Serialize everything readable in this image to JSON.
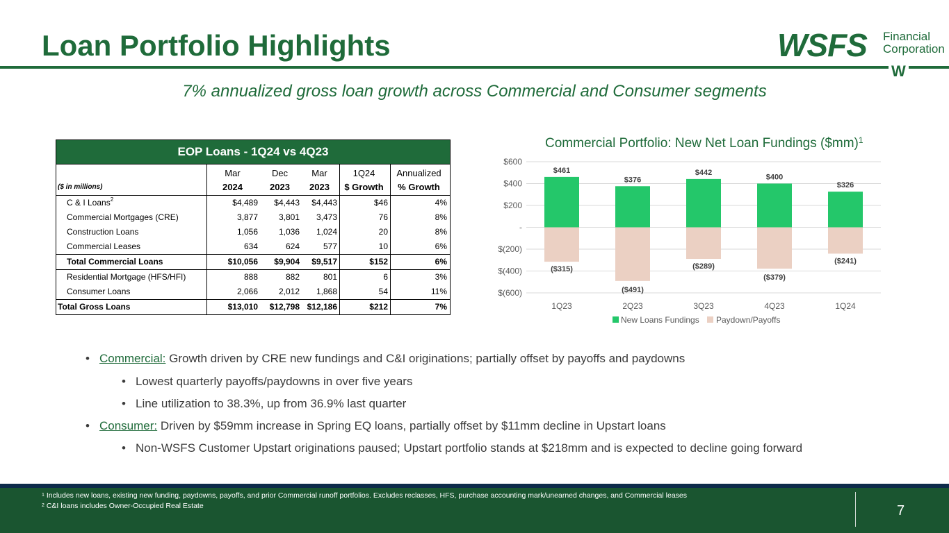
{
  "header": {
    "title": "Loan Portfolio Highlights",
    "subtitle": "7% annualized gross loan growth across Commercial and Consumer segments"
  },
  "logo": {
    "main": "WSFS",
    "sub_line1": "Financial",
    "sub_line2": "Corporation",
    "mark": "W"
  },
  "table": {
    "title": "EOP Loans - 1Q24 vs 4Q23",
    "units": "($ in millions)",
    "header_row1": [
      "Mar",
      "Dec",
      "Mar",
      "1Q24",
      "Annualized"
    ],
    "header_row2": [
      "2024",
      "2023",
      "2023",
      "$ Growth",
      "% Growth"
    ],
    "rows": [
      {
        "label": "C & I Loans",
        "sup": "2",
        "v": [
          "$4,489",
          "$4,443",
          "$4,443",
          "$46",
          "4%"
        ]
      },
      {
        "label": "Commercial Mortgages (CRE)",
        "v": [
          "3,877",
          "3,801",
          "3,473",
          "76",
          "8%"
        ]
      },
      {
        "label": "Construction Loans",
        "v": [
          "1,056",
          "1,036",
          "1,024",
          "20",
          "8%"
        ]
      },
      {
        "label": "Commercial Leases",
        "v": [
          "634",
          "624",
          "577",
          "10",
          "6%"
        ]
      },
      {
        "label": "Total Commercial Loans",
        "v": [
          "$10,056",
          "$9,904",
          "$9,517",
          "$152",
          "6%"
        ]
      },
      {
        "label": "Residential Mortgage (HFS/HFI)",
        "v": [
          "888",
          "882",
          "801",
          "6",
          "3%"
        ]
      },
      {
        "label": "Consumer Loans",
        "v": [
          "2,066",
          "2,012",
          "1,868",
          "54",
          "11%"
        ]
      },
      {
        "label": "Total Gross Loans",
        "v": [
          "$13,010",
          "$12,798",
          "$12,186",
          "$212",
          "7%"
        ]
      }
    ]
  },
  "chart_title": "Commercial Portfolio: New Net Loan Fundings ($mm)",
  "chart_title_sup": "1",
  "chart_data": {
    "type": "bar",
    "title": "Commercial Portfolio: New Net Loan Fundings ($mm)",
    "categories": [
      "1Q23",
      "2Q23",
      "3Q23",
      "4Q23",
      "1Q24"
    ],
    "series": [
      {
        "name": "New Loans Fundings",
        "color": "#24c76a",
        "values": [
          461,
          376,
          442,
          400,
          326
        ],
        "labels": [
          "$461",
          "$376",
          "$442",
          "$400",
          "$326"
        ]
      },
      {
        "name": "Paydown/Payoffs",
        "color": "#ebd0c3",
        "values": [
          -315,
          -491,
          -289,
          -379,
          -241
        ],
        "labels": [
          "($315)",
          "($491)",
          "($289)",
          "($379)",
          "($241)"
        ]
      }
    ],
    "yticks": [
      600,
      400,
      200,
      0,
      -200,
      -400,
      -600
    ],
    "ytick_labels": [
      "$600",
      "$400",
      "$200",
      "-",
      "$(200)",
      "$(400)",
      "$(600)"
    ],
    "ylim": [
      -600,
      600
    ],
    "grid": true,
    "legend": "bottom"
  },
  "bullets": {
    "b1_lead": "Commercial:",
    "b1_text": " Growth driven by CRE new fundings and C&I originations; partially offset by payoffs and paydowns",
    "b1a": "Lowest quarterly payoffs/paydowns in over five years",
    "b1b": "Line utilization to 38.3%, up from 36.9% last quarter",
    "b2_lead": "Consumer:",
    "b2_text": " Driven by $59mm increase in Spring EQ loans, partially offset by $11mm decline in Upstart loans",
    "b2a": "Non-WSFS Customer Upstart originations paused; Upstart portfolio stands at $218mm and is expected to decline going forward",
    "dot": "•"
  },
  "footer": {
    "fn1_sup": "1",
    "fn1": " Includes new loans, existing new funding, paydowns, payoffs, and prior Commercial runoff portfolios. Excludes reclasses, HFS, purchase accounting mark/unearned changes, and Commercial leases",
    "fn2_sup": "2",
    "fn2": " C&I loans includes Owner-Occupied Real Estate",
    "page": "7"
  }
}
